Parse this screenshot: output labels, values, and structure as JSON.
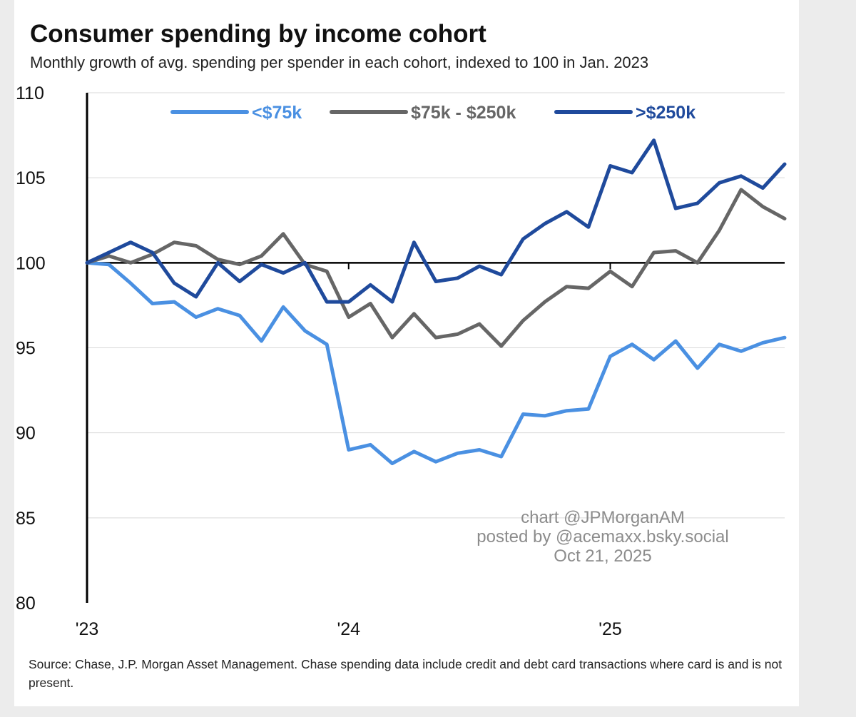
{
  "header": {
    "title": "Consumer spending by income cohort",
    "subtitle": "Monthly growth of avg. spending per spender in each cohort, indexed to 100 in Jan. 2023"
  },
  "watermark": {
    "line1": "chart @JPMorganAM",
    "line2": "posted by @acemaxx.bsky.social",
    "line3": "Oct 21, 2025"
  },
  "footer": {
    "source": "Source: Chase, J.P. Morgan Asset Management. Chase spending data include credit and debt card transactions where card is and is not present."
  },
  "chart_data": {
    "type": "line",
    "title": "Consumer spending by income cohort",
    "subtitle": "Monthly growth of avg. spending per spender in each cohort, indexed to 100 in Jan. 2023",
    "xlabel": "",
    "ylabel": "",
    "x": [
      "2023-01",
      "2023-02",
      "2023-03",
      "2023-04",
      "2023-05",
      "2023-06",
      "2023-07",
      "2023-08",
      "2023-09",
      "2023-10",
      "2023-11",
      "2023-12",
      "2024-01",
      "2024-02",
      "2024-03",
      "2024-04",
      "2024-05",
      "2024-06",
      "2024-07",
      "2024-08",
      "2024-09",
      "2024-10",
      "2024-11",
      "2024-12",
      "2025-01",
      "2025-02",
      "2025-03",
      "2025-04",
      "2025-05",
      "2025-06",
      "2025-07",
      "2025-08",
      "2025-09"
    ],
    "x_tick_labels": [
      {
        "label": "'23",
        "x": "2023-01"
      },
      {
        "label": "'24",
        "x": "2024-01"
      },
      {
        "label": "'25",
        "x": "2025-01"
      }
    ],
    "ylim": [
      80,
      110
    ],
    "yticks": [
      80,
      85,
      90,
      95,
      100,
      105,
      110
    ],
    "reference_line": 100,
    "grid": true,
    "legend_position": "top",
    "series": [
      {
        "name": "<$75k",
        "color": "#4a90e2",
        "values": [
          100,
          99.9,
          98.8,
          97.6,
          97.7,
          96.8,
          97.3,
          96.9,
          95.4,
          97.4,
          96.0,
          95.2,
          89.0,
          89.3,
          88.2,
          88.9,
          88.3,
          88.8,
          89.0,
          88.6,
          91.1,
          91.0,
          91.3,
          91.4,
          94.5,
          95.2,
          94.3,
          95.4,
          93.8,
          95.2,
          94.8,
          95.3,
          95.6
        ]
      },
      {
        "name": "$75k - $250k",
        "color": "#666666",
        "values": [
          100,
          100.4,
          100.0,
          100.5,
          101.2,
          101.0,
          100.2,
          99.9,
          100.4,
          101.7,
          99.9,
          99.5,
          96.8,
          97.6,
          95.6,
          97.0,
          95.6,
          95.8,
          96.4,
          95.1,
          96.6,
          97.7,
          98.6,
          98.5,
          99.5,
          98.6,
          100.6,
          100.7,
          100.0,
          101.9,
          104.3,
          103.3,
          102.6
        ]
      },
      {
        "name": ">$250k",
        "color": "#1f4a9c",
        "values": [
          100,
          100.6,
          101.2,
          100.6,
          98.8,
          98.0,
          100.0,
          98.9,
          99.9,
          99.4,
          100.0,
          97.7,
          97.7,
          98.7,
          97.7,
          101.2,
          98.9,
          99.1,
          99.8,
          99.3,
          101.4,
          102.3,
          103.0,
          102.1,
          105.7,
          105.3,
          107.2,
          103.2,
          103.5,
          104.7,
          105.1,
          104.4,
          105.8
        ]
      }
    ]
  }
}
